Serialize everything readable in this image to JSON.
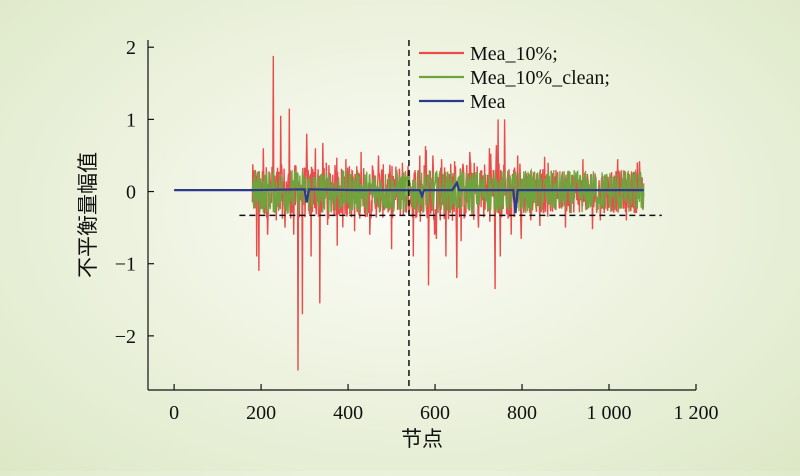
{
  "chart_data": {
    "type": "line",
    "title": "",
    "xlabel": "节点",
    "ylabel": "不平衡量幅值",
    "xlim": [
      -60,
      1200
    ],
    "ylim": [
      -2.75,
      2.1
    ],
    "x_ticks": [
      0,
      200,
      400,
      600,
      800,
      1000,
      1200
    ],
    "x_tick_labels": [
      "0",
      "200",
      "400",
      "600",
      "800",
      "1 000",
      "1 200"
    ],
    "y_ticks": [
      -2,
      -1,
      0,
      1,
      2
    ],
    "y_tick_labels": [
      "−2",
      "−1",
      "0",
      "1",
      "2"
    ],
    "grid": false,
    "legend_position": "top-right",
    "series": [
      {
        "name": "Mea_10%;",
        "color": "#ea4b4b",
        "x_range": [
          180,
          1080
        ],
        "notable_points": [
          [
            187,
            0.3
          ],
          [
            190,
            -0.9
          ],
          [
            195,
            -1.1
          ],
          [
            205,
            0.6
          ],
          [
            215,
            -0.6
          ],
          [
            228,
            1.88
          ],
          [
            235,
            -0.4
          ],
          [
            245,
            1.05
          ],
          [
            255,
            -0.5
          ],
          [
            265,
            1.15
          ],
          [
            275,
            -0.6
          ],
          [
            285,
            -2.48
          ],
          [
            295,
            -1.7
          ],
          [
            305,
            0.8
          ],
          [
            315,
            -0.9
          ],
          [
            325,
            0.6
          ],
          [
            335,
            -1.55
          ],
          [
            350,
            0.4
          ],
          [
            375,
            -0.75
          ],
          [
            395,
            0.45
          ],
          [
            415,
            -0.55
          ],
          [
            430,
            0.55
          ],
          [
            450,
            -0.6
          ],
          [
            470,
            0.5
          ],
          [
            500,
            -0.8
          ],
          [
            525,
            0.4
          ],
          [
            550,
            -0.9
          ],
          [
            565,
            0.5
          ],
          [
            585,
            -1.3
          ],
          [
            595,
            0.5
          ],
          [
            600,
            -0.55
          ],
          [
            615,
            0.45
          ],
          [
            625,
            -0.9
          ],
          [
            650,
            -1.2
          ],
          [
            680,
            0.55
          ],
          [
            700,
            -0.5
          ],
          [
            725,
            0.6
          ],
          [
            738,
            -1.35
          ],
          [
            745,
            1.0
          ],
          [
            750,
            -0.9
          ],
          [
            760,
            1.0
          ],
          [
            775,
            -0.6
          ],
          [
            790,
            0.5
          ],
          [
            820,
            -0.4
          ],
          [
            860,
            0.4
          ],
          [
            900,
            -0.5
          ],
          [
            940,
            0.45
          ],
          [
            980,
            -0.4
          ],
          [
            1020,
            0.45
          ],
          [
            1040,
            -0.4
          ],
          [
            1070,
            0.42
          ],
          [
            1078,
            0.0
          ]
        ]
      },
      {
        "name": "Mea_10%_clean;",
        "color": "#70a33e",
        "x_range": [
          180,
          1080
        ],
        "amplitude_approx": 0.3
      },
      {
        "name": "Mea",
        "color": "#2b3a8c",
        "x": [
          0,
          180,
          300,
          305,
          310,
          420,
          540,
          565,
          570,
          575,
          640,
          650,
          655,
          690,
          760,
          780,
          785,
          790,
          900,
          1080
        ],
        "y": [
          0.02,
          0.02,
          0.03,
          -0.15,
          0.03,
          0.02,
          0.02,
          0.02,
          -0.06,
          0.02,
          0.02,
          0.12,
          0.02,
          0.02,
          0.02,
          0.02,
          -0.3,
          0.02,
          0.02,
          0.02
        ]
      }
    ],
    "reference_lines": [
      {
        "orientation": "vertical",
        "value": 540,
        "style": "dashed"
      },
      {
        "orientation": "horizontal",
        "value": -0.33,
        "style": "dashed"
      }
    ]
  }
}
